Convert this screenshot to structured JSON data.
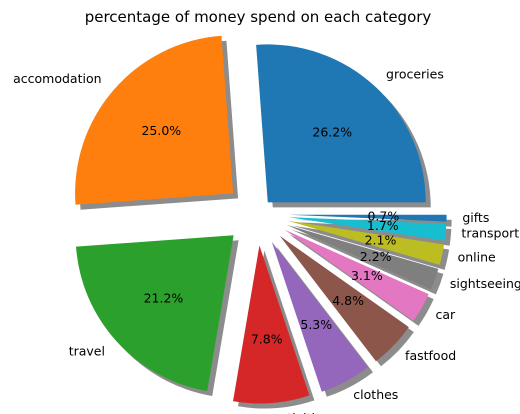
{
  "chart_data": {
    "type": "pie",
    "title": "percentage of money spend on each category",
    "start_angle_deg": 0,
    "direction": "counterclockwise",
    "shadow": true,
    "slices": [
      {
        "label": "groceries",
        "value": 26.2,
        "pct_label": "26.2%",
        "color": "#1f77b4",
        "explode": 0.1
      },
      {
        "label": "accomodation",
        "value": 25.0,
        "pct_label": "25.0%",
        "color": "#ff7f0e",
        "explode": 0.2
      },
      {
        "label": "travel",
        "value": 21.2,
        "pct_label": "21.2%",
        "color": "#2ca02c",
        "explode": 0.2
      },
      {
        "label": "activities",
        "value": 7.8,
        "pct_label": "7.8%",
        "color": "#d62728",
        "explode": 0.2
      },
      {
        "label": "clothes",
        "value": 5.3,
        "pct_label": "5.3%",
        "color": "#9467bd",
        "explode": 0.2
      },
      {
        "label": "fastfood",
        "value": 4.8,
        "pct_label": "4.8%",
        "color": "#8c564b",
        "explode": 0.2
      },
      {
        "label": "car",
        "value": 3.1,
        "pct_label": "3.1%",
        "color": "#e377c2",
        "explode": 0.2
      },
      {
        "label": "sightseeing",
        "value": 2.2,
        "pct_label": "2.2%",
        "color": "#7f7f7f",
        "explode": 0.2
      },
      {
        "label": "online",
        "value": 2.1,
        "pct_label": "2.1%",
        "color": "#bcbd22",
        "explode": 0.2
      },
      {
        "label": "transport",
        "value": 1.7,
        "pct_label": "1.7%",
        "color": "#17becf",
        "explode": 0.2
      },
      {
        "label": "gifts",
        "value": 0.7,
        "pct_label": "0.7%",
        "color": "#1f77b4",
        "explode": 0.2
      }
    ]
  }
}
